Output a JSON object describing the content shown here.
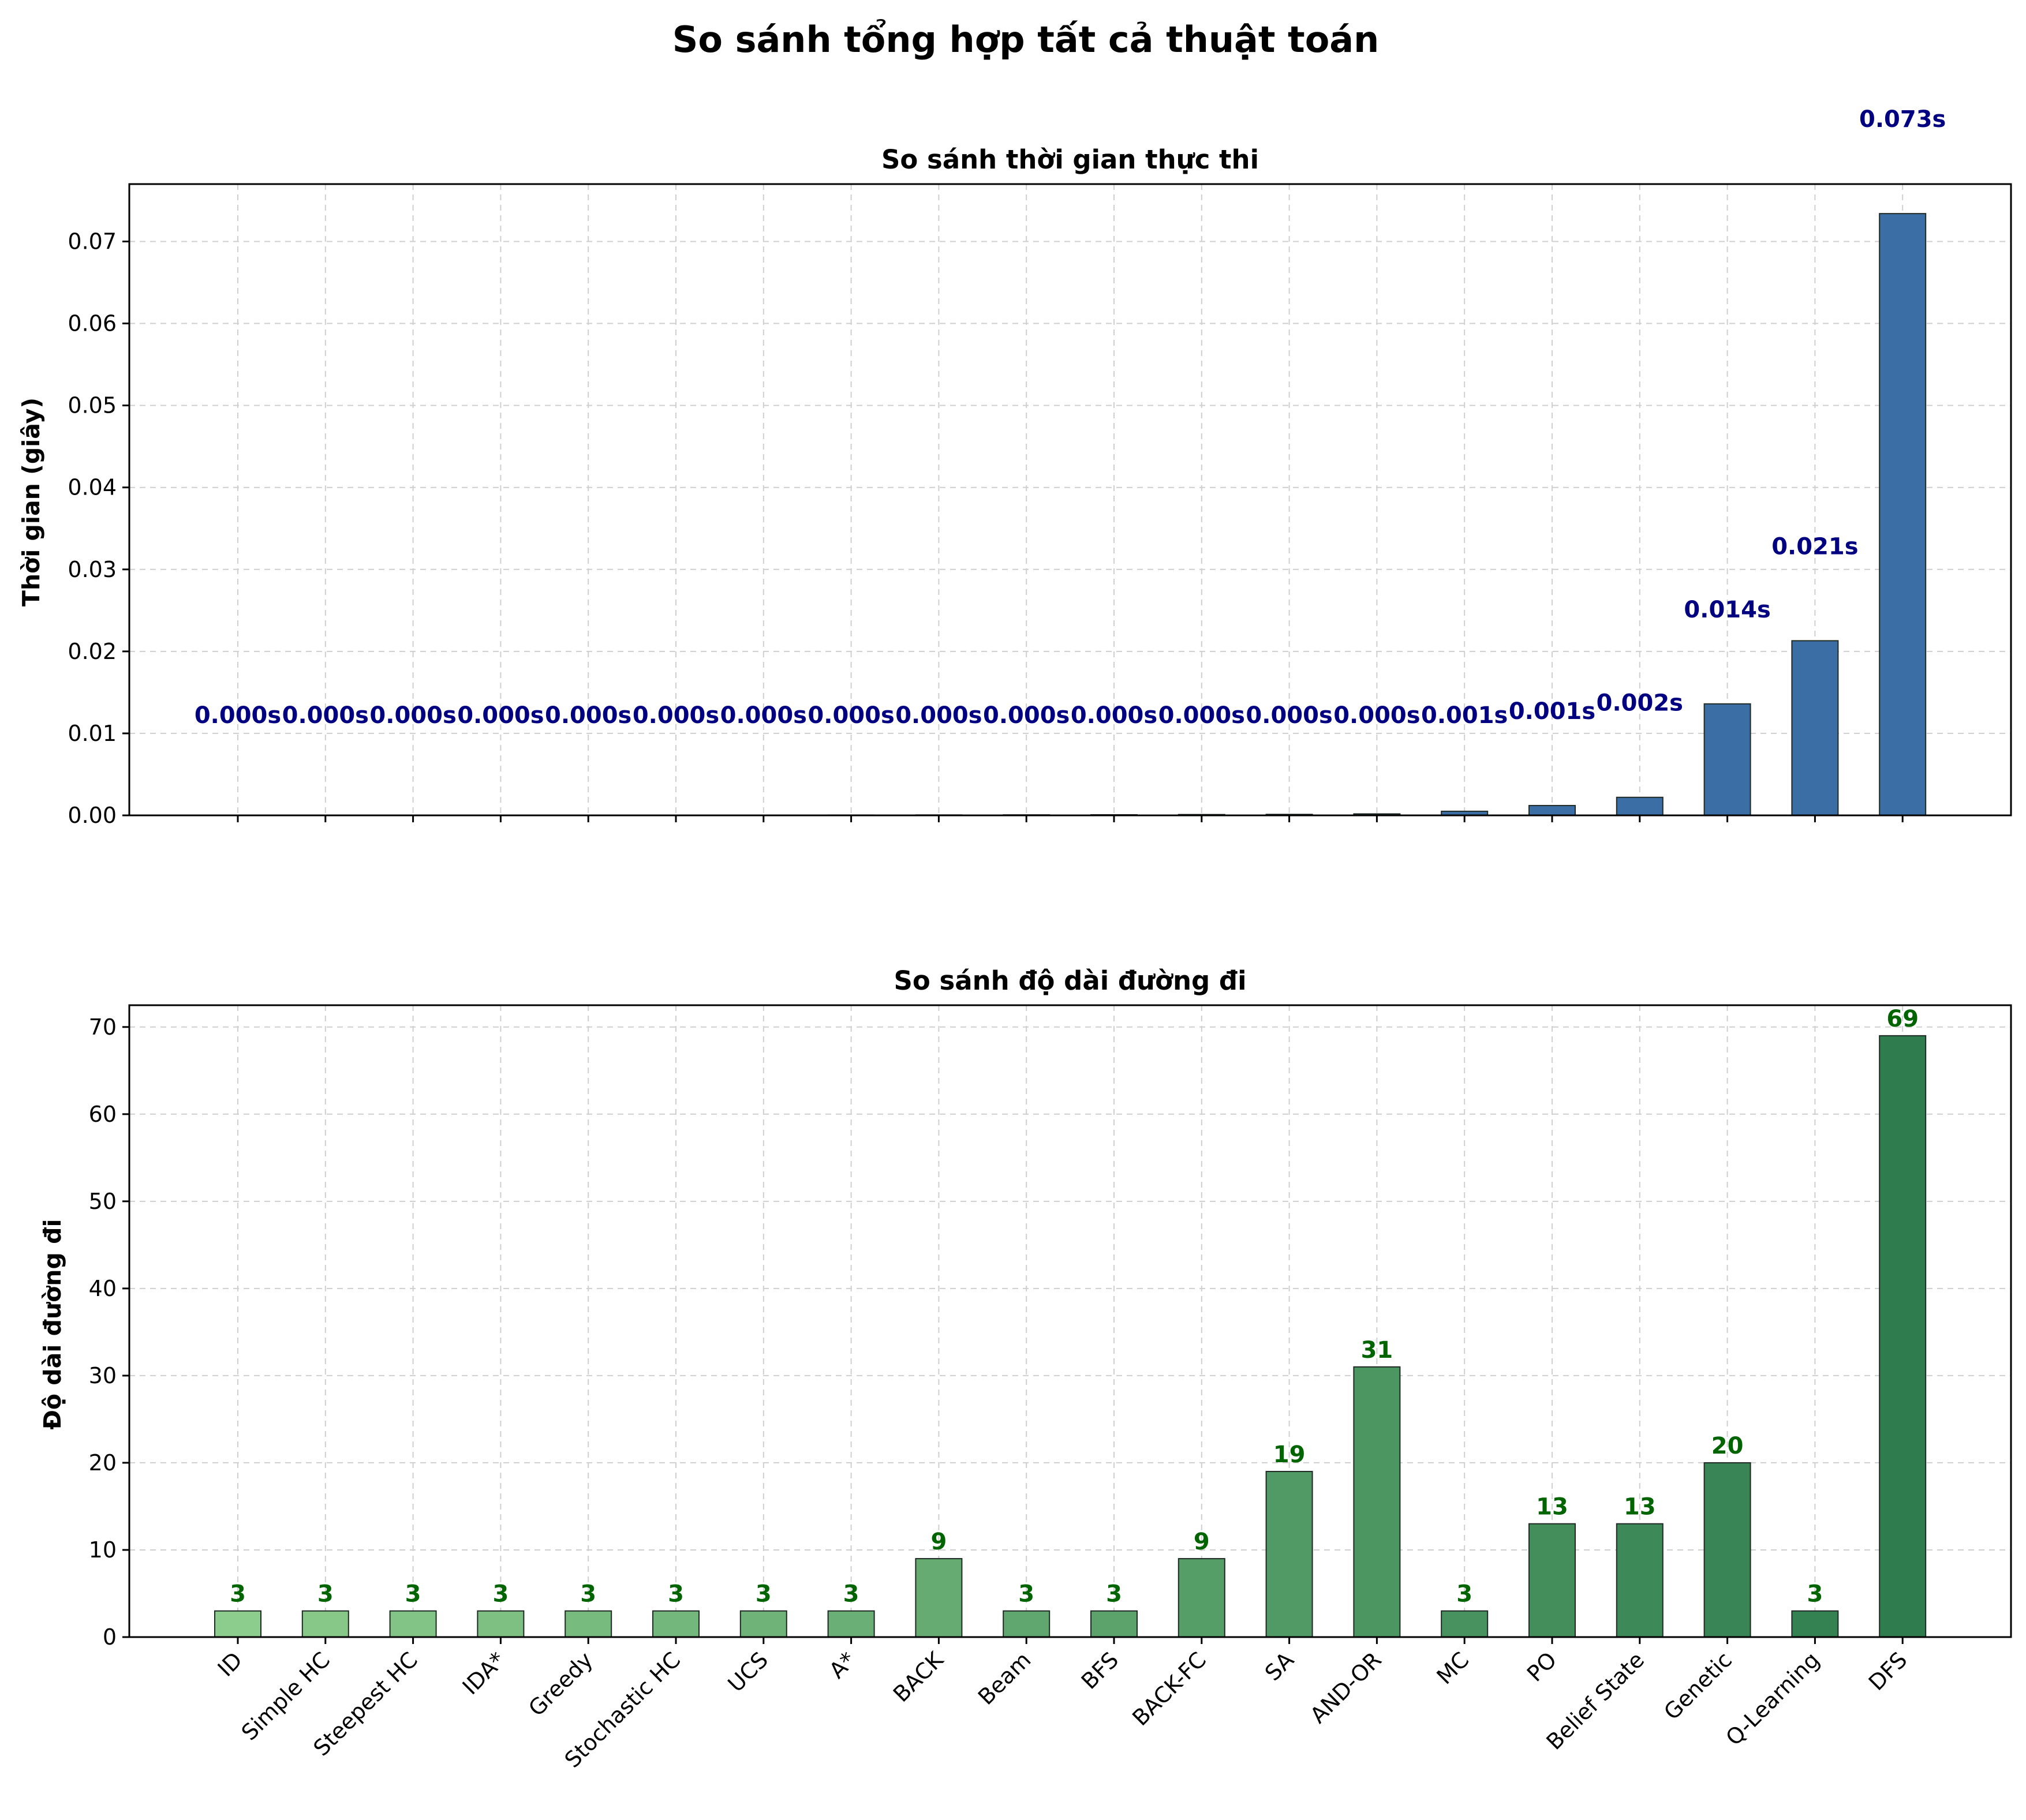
{
  "title": "So sánh tổng hợp tất cả thuật toán",
  "chart_data": [
    {
      "type": "bar",
      "title": "So sánh thời gian thực thi",
      "xlabel": "",
      "ylabel": "Thời gian (giây)",
      "ylim": [
        0,
        0.077
      ],
      "yticks": [
        "0.00",
        "0.01",
        "0.02",
        "0.03",
        "0.04",
        "0.05",
        "0.06",
        "0.07"
      ],
      "grid": true,
      "categories": [
        "ID",
        "Simple HC",
        "Steepest HC",
        "IDA*",
        "Greedy",
        "Stochastic HC",
        "UCS",
        "A*",
        "BACK",
        "Beam",
        "BFS",
        "BACK-FC",
        "SA",
        "AND-OR",
        "MC",
        "PO",
        "Belief State",
        "Genetic",
        "Q-Learning",
        "DFS"
      ],
      "values": [
        1e-05,
        1e-05,
        1e-05,
        2e-05,
        2e-05,
        2e-05,
        3e-05,
        4e-05,
        5e-05,
        6e-05,
        7e-05,
        0.0001,
        0.00012,
        0.00018,
        0.0005,
        0.0012,
        0.0022,
        0.0136,
        0.0213,
        0.0734
      ],
      "value_labels": [
        "0.000s",
        "0.000s",
        "0.000s",
        "0.000s",
        "0.000s",
        "0.000s",
        "0.000s",
        "0.000s",
        "0.000s",
        "0.000s",
        "0.000s",
        "0.000s",
        "0.000s",
        "0.000s",
        "0.001s",
        "0.001s",
        "0.002s",
        "0.014s",
        "0.021s",
        "0.073s"
      ],
      "bar_color": "#3a6ea5",
      "label_color": "#000080"
    },
    {
      "type": "bar",
      "title": "So sánh độ dài đường đi",
      "xlabel": "",
      "ylabel": "Độ dài đường đi",
      "ylim": [
        0,
        72.5
      ],
      "yticks": [
        "0",
        "10",
        "20",
        "30",
        "40",
        "50",
        "60",
        "70"
      ],
      "grid": true,
      "categories": [
        "ID",
        "Simple HC",
        "Steepest HC",
        "IDA*",
        "Greedy",
        "Stochastic HC",
        "UCS",
        "A*",
        "BACK",
        "Beam",
        "BFS",
        "BACK-FC",
        "SA",
        "AND-OR",
        "MC",
        "PO",
        "Belief State",
        "Genetic",
        "Q-Learning",
        "DFS"
      ],
      "values": [
        3,
        3,
        3,
        3,
        3,
        3,
        3,
        3,
        9,
        3,
        3,
        9,
        19,
        31,
        3,
        13,
        13,
        20,
        3,
        69
      ],
      "value_labels": [
        "3",
        "3",
        "3",
        "3",
        "3",
        "3",
        "3",
        "3",
        "9",
        "3",
        "3",
        "9",
        "19",
        "31",
        "3",
        "13",
        "13",
        "20",
        "3",
        "69"
      ],
      "bar_color_start": "#8ccc8c",
      "bar_color_end": "#2f7d4e",
      "label_color": "#006400"
    }
  ]
}
